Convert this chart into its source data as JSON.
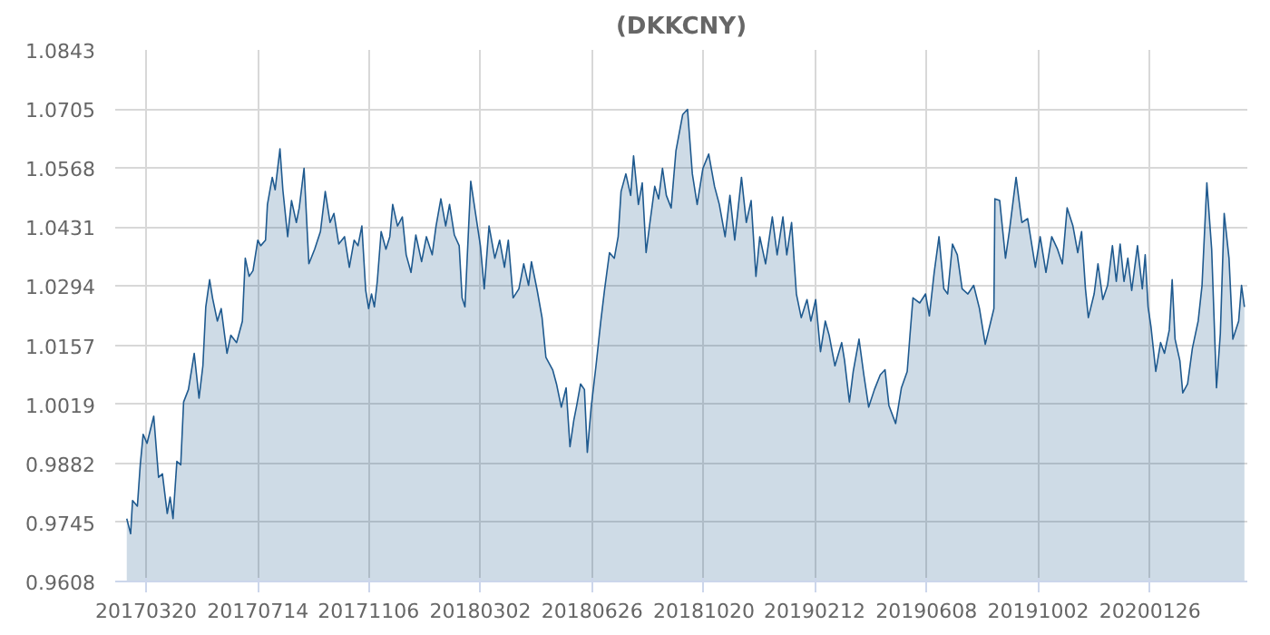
{
  "chart_data": {
    "type": "area",
    "title": "(DKKCNY)",
    "color": "#1f5a8f",
    "grid": true,
    "legend": false,
    "xlim": [
      "2017-02-16",
      "2020-05-06"
    ],
    "xticks": [
      {
        "value": "2017-03-20",
        "label": "20170320"
      },
      {
        "value": "2017-07-14",
        "label": "20170714"
      },
      {
        "value": "2017-11-06",
        "label": "20171106"
      },
      {
        "value": "2018-03-02",
        "label": "20180302"
      },
      {
        "value": "2018-06-26",
        "label": "20180626"
      },
      {
        "value": "2018-10-20",
        "label": "20181020"
      },
      {
        "value": "2019-02-12",
        "label": "20190212"
      },
      {
        "value": "2019-06-08",
        "label": "20190608"
      },
      {
        "value": "2019-10-02",
        "label": "20191002"
      },
      {
        "value": "2020-01-26",
        "label": "20200126"
      }
    ],
    "ylim": [
      0.9608,
      1.0843
    ],
    "yticks": [
      0.9608,
      0.9745,
      0.9882,
      1.0019,
      1.0157,
      1.0294,
      1.0431,
      1.0568,
      1.0705,
      1.0843
    ],
    "x": [
      "2017-02-28",
      "2017-03-04",
      "2017-03-06",
      "2017-03-11",
      "2017-03-14",
      "2017-03-17",
      "2017-03-21",
      "2017-03-28",
      "2017-04-02",
      "2017-04-06",
      "2017-04-11",
      "2017-04-14",
      "2017-04-17",
      "2017-04-21",
      "2017-04-25",
      "2017-04-28",
      "2017-05-03",
      "2017-05-09",
      "2017-05-14",
      "2017-05-18",
      "2017-05-21",
      "2017-05-25",
      "2017-05-28",
      "2017-06-02",
      "2017-06-06",
      "2017-06-12",
      "2017-06-16",
      "2017-06-22",
      "2017-06-28",
      "2017-07-01",
      "2017-07-05",
      "2017-07-09",
      "2017-07-14",
      "2017-07-17",
      "2017-07-22",
      "2017-07-24",
      "2017-07-29",
      "2017-08-01",
      "2017-08-06",
      "2017-08-09",
      "2017-08-14",
      "2017-08-18",
      "2017-08-23",
      "2017-08-26",
      "2017-08-31",
      "2017-09-05",
      "2017-09-11",
      "2017-09-17",
      "2017-09-22",
      "2017-09-27",
      "2017-10-01",
      "2017-10-06",
      "2017-10-12",
      "2017-10-17",
      "2017-10-22",
      "2017-10-26",
      "2017-10-30",
      "2017-11-03",
      "2017-11-06",
      "2017-11-09",
      "2017-11-12",
      "2017-11-15",
      "2017-11-19",
      "2017-11-24",
      "2017-11-28",
      "2017-12-01",
      "2017-12-06",
      "2017-12-11",
      "2017-12-15",
      "2017-12-20",
      "2017-12-25",
      "2017-12-31",
      "2018-01-05",
      "2018-01-11",
      "2018-01-15",
      "2018-01-20",
      "2018-01-25",
      "2018-01-29",
      "2018-02-03",
      "2018-02-08",
      "2018-02-11",
      "2018-02-14",
      "2018-02-20",
      "2018-02-25",
      "2018-03-02",
      "2018-03-06",
      "2018-03-11",
      "2018-03-17",
      "2018-03-22",
      "2018-03-27",
      "2018-03-31",
      "2018-04-05",
      "2018-04-11",
      "2018-04-16",
      "2018-04-21",
      "2018-04-24",
      "2018-04-30",
      "2018-05-05",
      "2018-05-09",
      "2018-05-16",
      "2018-05-20",
      "2018-05-25",
      "2018-05-30",
      "2018-06-03",
      "2018-06-07",
      "2018-06-10",
      "2018-06-14",
      "2018-06-18",
      "2018-06-21",
      "2018-06-25",
      "2018-06-30",
      "2018-07-05",
      "2018-07-09",
      "2018-07-14",
      "2018-07-19",
      "2018-07-23",
      "2018-07-26",
      "2018-07-31",
      "2018-08-05",
      "2018-08-08",
      "2018-08-13",
      "2018-08-17",
      "2018-08-21",
      "2018-08-25",
      "2018-08-30",
      "2018-09-03",
      "2018-09-07",
      "2018-09-11",
      "2018-09-16",
      "2018-09-21",
      "2018-09-28",
      "2018-10-03",
      "2018-10-08",
      "2018-10-13",
      "2018-10-19",
      "2018-10-25",
      "2018-10-31",
      "2018-11-05",
      "2018-11-11",
      "2018-11-16",
      "2018-11-21",
      "2018-11-28",
      "2018-12-03",
      "2018-12-08",
      "2018-12-13",
      "2018-12-17",
      "2018-12-23",
      "2018-12-30",
      "2019-01-04",
      "2019-01-10",
      "2019-01-14",
      "2019-01-19",
      "2019-01-24",
      "2019-01-29",
      "2019-02-04",
      "2019-02-08",
      "2019-02-13",
      "2019-02-18",
      "2019-02-23",
      "2019-02-27",
      "2019-03-05",
      "2019-03-12",
      "2019-03-15",
      "2019-03-20",
      "2019-03-24",
      "2019-03-30",
      "2019-04-04",
      "2019-04-09",
      "2019-04-15",
      "2019-04-21",
      "2019-04-26",
      "2019-04-30",
      "2019-05-07",
      "2019-05-13",
      "2019-05-19",
      "2019-05-22",
      "2019-05-25",
      "2019-06-01",
      "2019-06-07",
      "2019-06-11",
      "2019-06-16",
      "2019-06-21",
      "2019-06-26",
      "2019-06-30",
      "2019-07-05",
      "2019-07-10",
      "2019-07-15",
      "2019-07-21",
      "2019-07-27",
      "2019-08-02",
      "2019-08-08",
      "2019-08-13",
      "2019-08-17",
      "2019-08-18",
      "2019-08-23",
      "2019-08-29",
      "2019-09-02",
      "2019-09-09",
      "2019-09-15",
      "2019-09-21",
      "2019-09-29",
      "2019-10-04",
      "2019-10-10",
      "2019-10-16",
      "2019-10-22",
      "2019-10-27",
      "2019-11-01",
      "2019-11-07",
      "2019-11-12",
      "2019-11-16",
      "2019-11-20",
      "2019-11-23",
      "2019-11-29",
      "2019-12-03",
      "2019-12-08",
      "2019-12-13",
      "2019-12-18",
      "2019-12-22",
      "2019-12-26",
      "2019-12-30",
      "2020-01-03",
      "2020-01-07",
      "2020-01-13",
      "2020-01-18",
      "2020-01-21",
      "2020-01-24",
      "2020-01-27",
      "2020-02-01",
      "2020-02-06",
      "2020-02-10",
      "2020-02-15",
      "2020-02-18",
      "2020-02-21",
      "2020-02-26",
      "2020-02-29",
      "2020-03-05",
      "2020-03-10",
      "2020-03-16",
      "2020-03-20",
      "2020-03-25",
      "2020-03-30",
      "2020-04-04",
      "2020-04-08",
      "2020-04-12",
      "2020-04-17",
      "2020-04-21",
      "2020-04-27",
      "2020-04-30",
      "2020-05-03"
    ],
    "values": [
      0.9754,
      0.9719,
      0.9796,
      0.9783,
      0.9879,
      0.995,
      0.9929,
      0.9992,
      0.985,
      0.9858,
      0.9766,
      0.9804,
      0.9754,
      0.9887,
      0.9879,
      1.0025,
      1.0054,
      1.0138,
      1.0034,
      1.0109,
      1.0246,
      1.0309,
      1.0267,
      1.0213,
      1.0242,
      1.0138,
      1.018,
      1.0163,
      1.0213,
      1.0359,
      1.0317,
      1.033,
      1.0401,
      1.0388,
      1.0401,
      1.0484,
      1.0547,
      1.0518,
      1.0613,
      1.0518,
      1.0409,
      1.0493,
      1.0442,
      1.0476,
      1.0568,
      1.0346,
      1.038,
      1.0421,
      1.0514,
      1.0442,
      1.0463,
      1.0392,
      1.0409,
      1.0338,
      1.0401,
      1.0388,
      1.0434,
      1.0284,
      1.0242,
      1.0276,
      1.0246,
      1.0305,
      1.0421,
      1.038,
      1.0409,
      1.0484,
      1.0434,
      1.0455,
      1.0367,
      1.0326,
      1.0413,
      1.0351,
      1.0409,
      1.0367,
      1.0434,
      1.0497,
      1.0434,
      1.0484,
      1.0413,
      1.0388,
      1.0267,
      1.0246,
      1.0538,
      1.0463,
      1.0388,
      1.0288,
      1.0434,
      1.0359,
      1.0401,
      1.0338,
      1.0401,
      1.0267,
      1.0288,
      1.0346,
      1.0296,
      1.0351,
      1.0284,
      1.0221,
      1.0129,
      1.01,
      1.0067,
      1.0013,
      1.0058,
      0.9921,
      0.9983,
      1.0017,
      1.0067,
      1.0054,
      0.9908,
      1.0013,
      1.0109,
      1.0213,
      1.0288,
      1.0372,
      1.0359,
      1.0409,
      1.0514,
      1.0555,
      1.0505,
      1.0597,
      1.0484,
      1.0534,
      1.0372,
      1.0442,
      1.0526,
      1.0497,
      1.0568,
      1.0505,
      1.0476,
      1.0609,
      1.0693,
      1.0705,
      1.0555,
      1.0484,
      1.0568,
      1.0601,
      1.0526,
      1.0484,
      1.0409,
      1.0505,
      1.0401,
      1.0547,
      1.0442,
      1.0493,
      1.0317,
      1.0409,
      1.0346,
      1.0455,
      1.0367,
      1.0455,
      1.0367,
      1.0442,
      1.0276,
      1.0221,
      1.0263,
      1.0213,
      1.0263,
      1.0142,
      1.0213,
      1.018,
      1.0109,
      1.0163,
      1.0121,
      1.0025,
      1.0096,
      1.0171,
      1.0088,
      1.0013,
      1.0054,
      1.0088,
      1.01,
      1.0017,
      0.9975,
      1.0058,
      1.0096,
      1.0184,
      1.0267,
      1.0255,
      1.0276,
      1.0225,
      1.0326,
      1.0409,
      1.0288,
      1.0276,
      1.0392,
      1.0367,
      1.0288,
      1.0276,
      1.0296,
      1.0242,
      1.0159,
      1.0205,
      1.0242,
      1.0497,
      1.0493,
      1.0359,
      1.0421,
      1.0547,
      1.0442,
      1.0451,
      1.0338,
      1.0409,
      1.0326,
      1.0409,
      1.038,
      1.0346,
      1.0476,
      1.0434,
      1.0372,
      1.0421,
      1.0288,
      1.0221,
      1.0276,
      1.0346,
      1.0263,
      1.0296,
      1.0388,
      1.0305,
      1.0392,
      1.0305,
      1.0359,
      1.0284,
      1.0388,
      1.0288,
      1.0367,
      1.0246,
      1.02,
      1.0096,
      1.0163,
      1.0138,
      1.0192,
      1.0309,
      1.0171,
      1.0121,
      1.0046,
      1.0067,
      1.015,
      1.0213,
      1.0296,
      1.0534,
      1.038,
      1.0058,
      1.0184,
      1.0463,
      1.0359,
      1.0171,
      1.0213,
      1.0296,
      1.0246
    ]
  }
}
